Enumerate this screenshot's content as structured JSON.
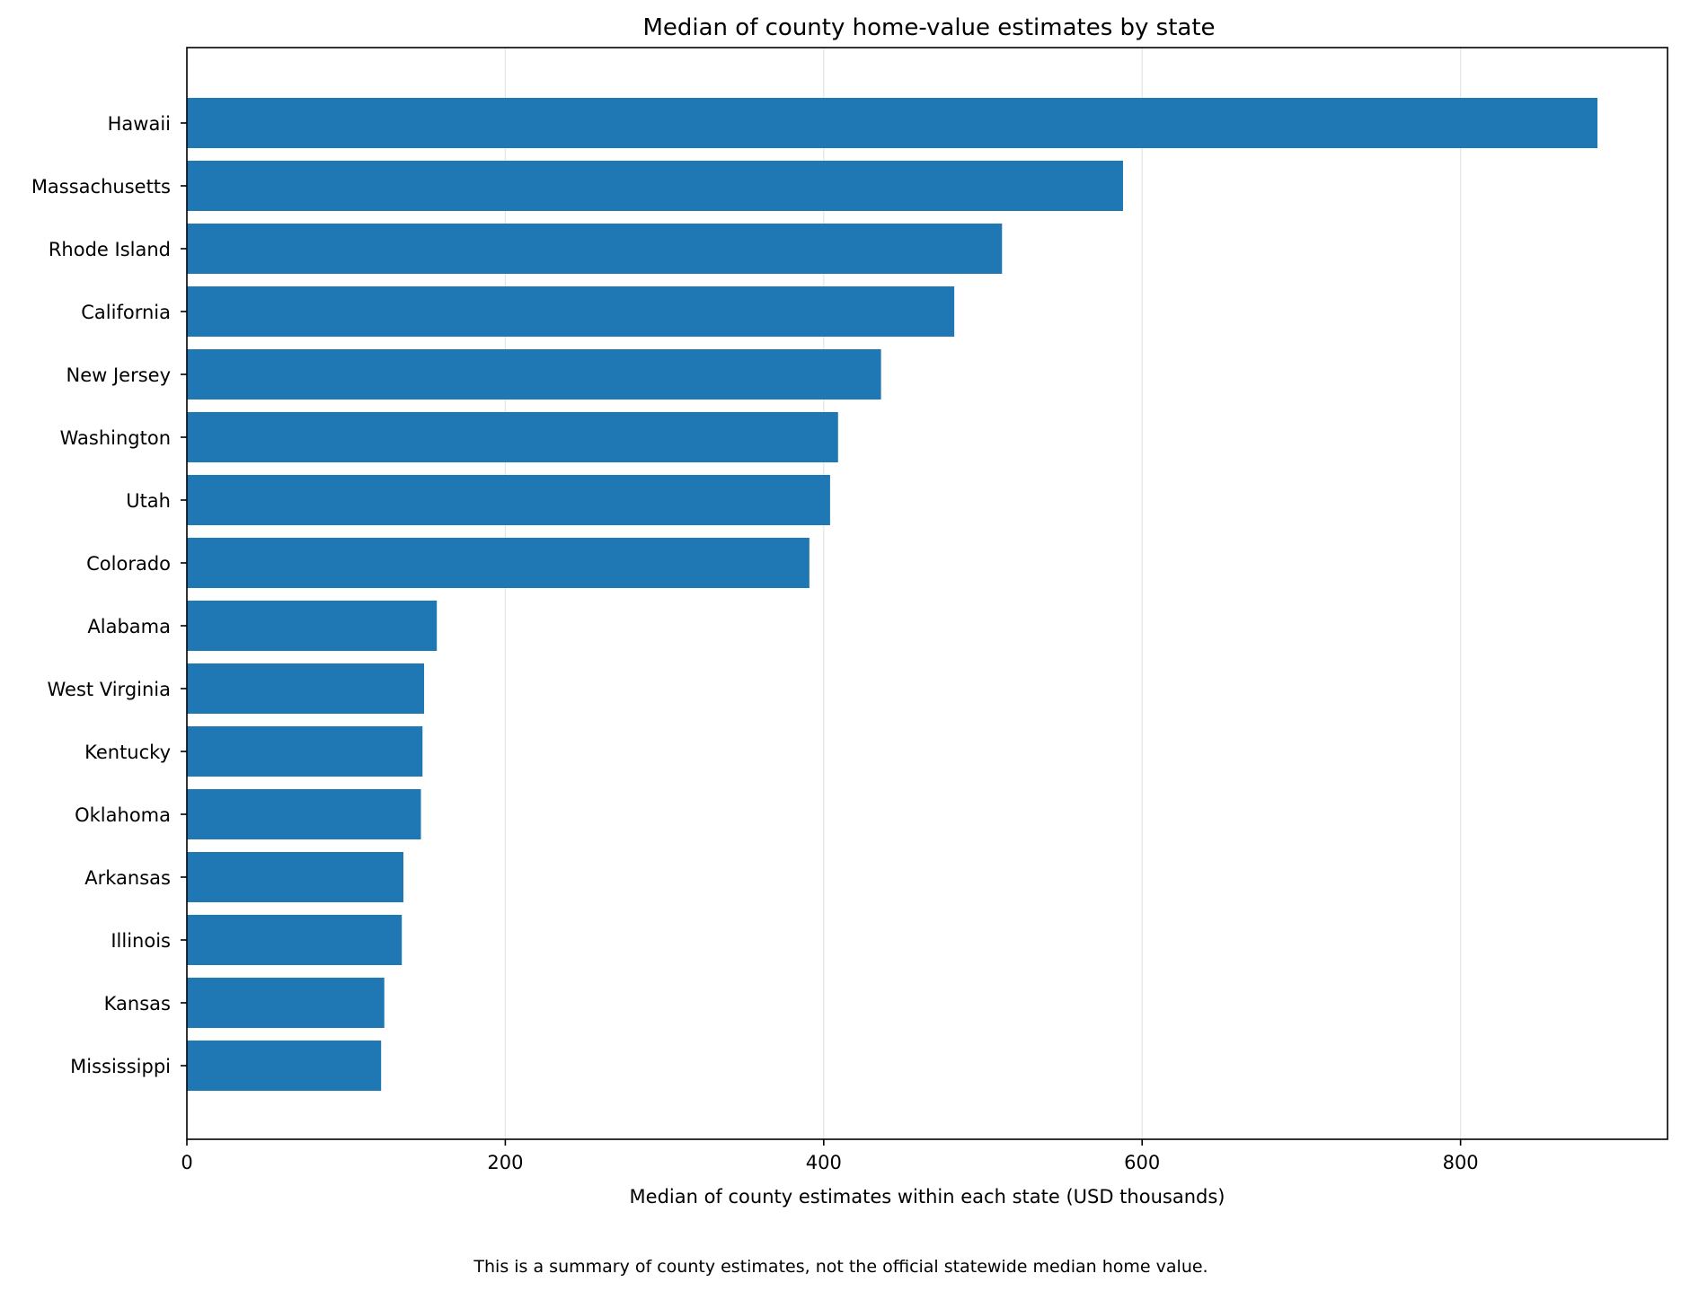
{
  "chart_data": {
    "type": "bar",
    "orientation": "horizontal",
    "title": "Median of county home-value estimates by state",
    "xlabel": "Median of county estimates within each state (USD thousands)",
    "ylabel": "",
    "note": "This is a summary of county estimates, not the official statewide median home value.",
    "categories": [
      "Hawaii",
      "Massachusetts",
      "Rhode Island",
      "California",
      "New Jersey",
      "Washington",
      "Utah",
      "Colorado",
      "Alabama",
      "West Virginia",
      "Kentucky",
      "Oklahoma",
      "Arkansas",
      "Illinois",
      "Kansas",
      "Mississippi"
    ],
    "values": [
      886,
      588,
      512,
      482,
      436,
      409,
      404,
      391,
      157,
      149,
      148,
      147,
      136,
      135,
      124,
      122
    ],
    "xlim": [
      0,
      930
    ],
    "xticks": [
      0,
      200,
      400,
      600,
      800
    ],
    "grid": "x-major",
    "bar_color": "#1f77b4"
  }
}
